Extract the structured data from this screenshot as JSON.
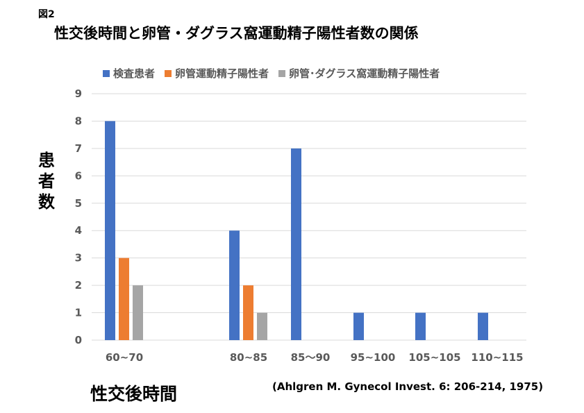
{
  "figure_label": "図2",
  "chart_data": {
    "type": "bar",
    "title": "性交後時間と卵管・ダグラス窩運動精子陽性者数の関係",
    "xlabel": "性交後時間",
    "ylabel": "患者数",
    "categories": [
      "60~70",
      "80~85",
      "85～90",
      "95~100",
      "105~105",
      "110~115"
    ],
    "series": [
      {
        "name": "検査患者",
        "color": "#4472C4",
        "values": [
          8,
          4,
          7,
          1,
          1,
          1
        ]
      },
      {
        "name": "卵管運動精子陽性者",
        "color": "#ED7D31",
        "values": [
          3,
          2,
          0,
          0,
          0,
          0
        ]
      },
      {
        "name": "卵管･ダグラス窩運動精子陽性者",
        "color": "#A5A5A5",
        "values": [
          2,
          1,
          0,
          0,
          0,
          0
        ]
      }
    ],
    "ylim": [
      0,
      9
    ],
    "yticks": [
      0,
      1,
      2,
      3,
      4,
      5,
      6,
      7,
      8,
      9
    ],
    "grid": true,
    "legend": "top"
  },
  "citation": "(Ahlgren M. Gynecol Invest. 6: 206-214, 1975)"
}
